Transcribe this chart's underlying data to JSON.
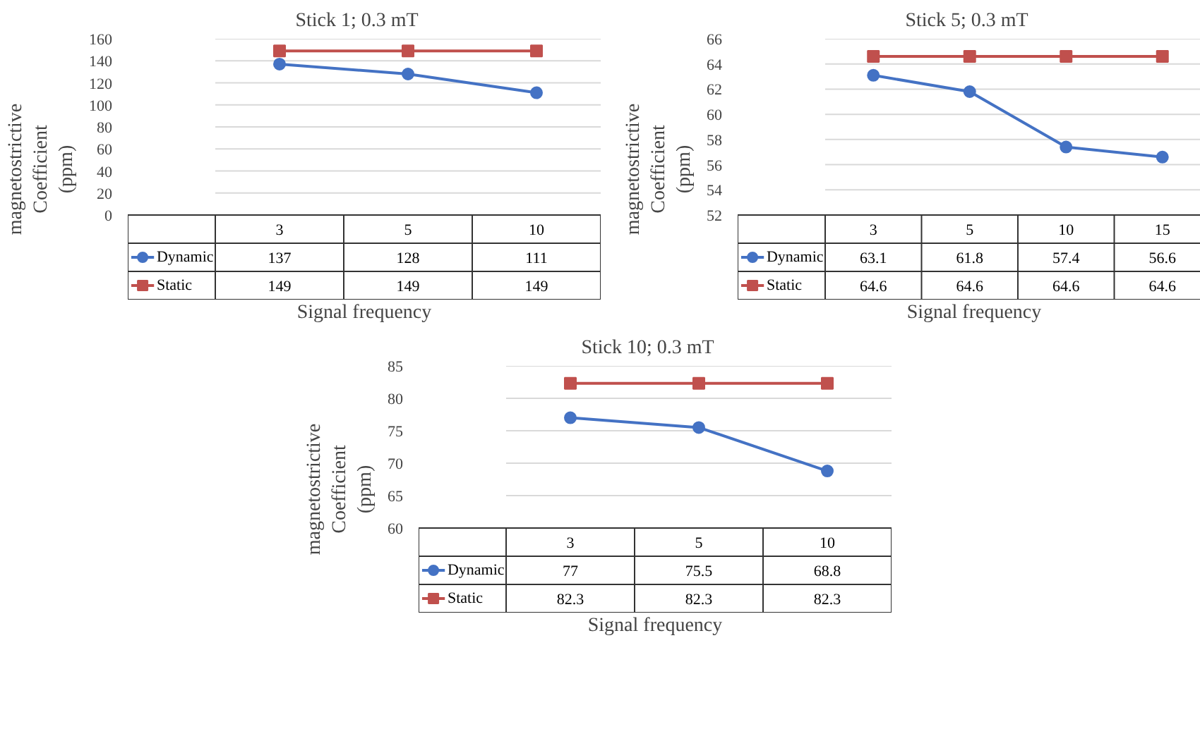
{
  "chart_data": [
    {
      "type": "line",
      "title": "Stick 1;    0.3 mT",
      "xlabel": "Signal frequency",
      "ylabel": "magnetostrictive Coefficient (ppm)",
      "categories": [
        "3",
        "5",
        "10"
      ],
      "ylim": [
        0,
        160
      ],
      "yticks": [
        0,
        20,
        40,
        60,
        80,
        100,
        120,
        140,
        160
      ],
      "grid": "y",
      "legend": "bottom",
      "data_labels": true,
      "series": [
        {
          "name": "Dynamic",
          "color": "#4472c4",
          "marker": "circle",
          "values": [
            137,
            128,
            111
          ]
        },
        {
          "name": "Static",
          "color": "#c0504d",
          "marker": "square",
          "values": [
            149,
            149,
            149
          ]
        }
      ]
    },
    {
      "type": "line",
      "title": "Stick 5;    0.3 mT",
      "xlabel": "Signal frequency",
      "ylabel": "magnetostrictive Coefficient (ppm)",
      "categories": [
        "3",
        "5",
        "10",
        "15"
      ],
      "ylim": [
        52,
        66
      ],
      "yticks": [
        52,
        54,
        56,
        58,
        60,
        62,
        64,
        66
      ],
      "grid": "y",
      "legend": "bottom",
      "data_labels": true,
      "series": [
        {
          "name": "Dynamic",
          "color": "#4472c4",
          "marker": "circle",
          "values": [
            63.1,
            61.8,
            57.4,
            56.6
          ]
        },
        {
          "name": "Static",
          "color": "#c0504d",
          "marker": "square",
          "values": [
            64.6,
            64.6,
            64.6,
            64.6
          ]
        }
      ]
    },
    {
      "type": "line",
      "title": "Stick 10;    0.3 mT",
      "xlabel": "Signal frequency",
      "ylabel": "magnetostrictive Coefficient (ppm)",
      "categories": [
        "3",
        "5",
        "10"
      ],
      "ylim": [
        60,
        85
      ],
      "yticks": [
        60,
        65,
        70,
        75,
        80,
        85
      ],
      "grid": "y",
      "legend": "bottom",
      "data_labels": true,
      "series": [
        {
          "name": "Dynamic",
          "color": "#4472c4",
          "marker": "circle",
          "values": [
            77,
            75.5,
            68.8
          ]
        },
        {
          "name": "Static",
          "color": "#c0504d",
          "marker": "square",
          "values": [
            82.3,
            82.3,
            82.3
          ]
        }
      ]
    }
  ]
}
